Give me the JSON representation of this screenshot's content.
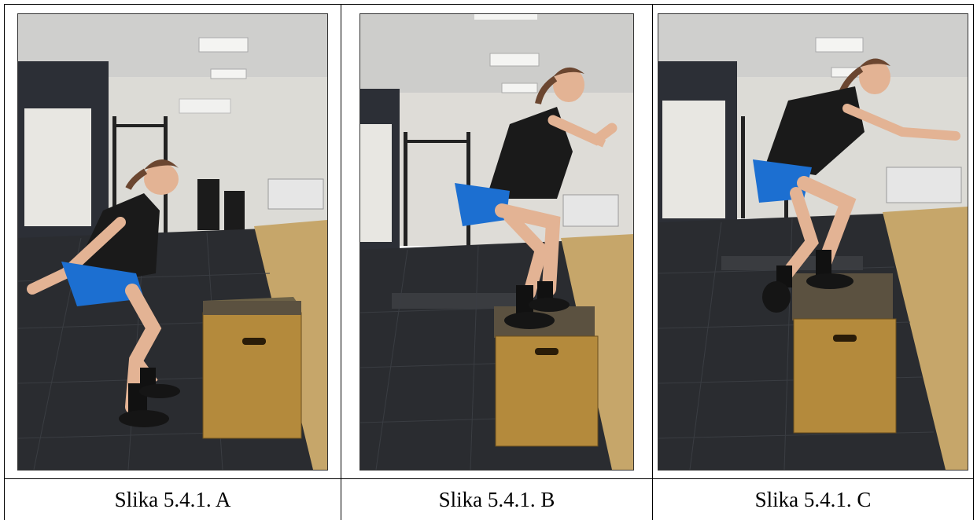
{
  "figure": {
    "panels": [
      {
        "id": "A",
        "caption": "Slika 5.4.1. A",
        "phase": "squat-before-jump"
      },
      {
        "id": "B",
        "caption": "Slika 5.4.1. B",
        "phase": "landed-on-box"
      },
      {
        "id": "C",
        "caption": "Slika 5.4.1. C",
        "phase": "jumping-onto-box"
      }
    ]
  },
  "colors": {
    "floor": "#2b2d31",
    "wall": "#d9d8d4",
    "ceiling": "#c9c9c9",
    "box": "#b48a3c",
    "osb": "#c6a66a",
    "shirt": "#1a1a1a",
    "shorts": "#1c6fd1",
    "skin": "#e3b394",
    "hair": "#6b4630"
  }
}
